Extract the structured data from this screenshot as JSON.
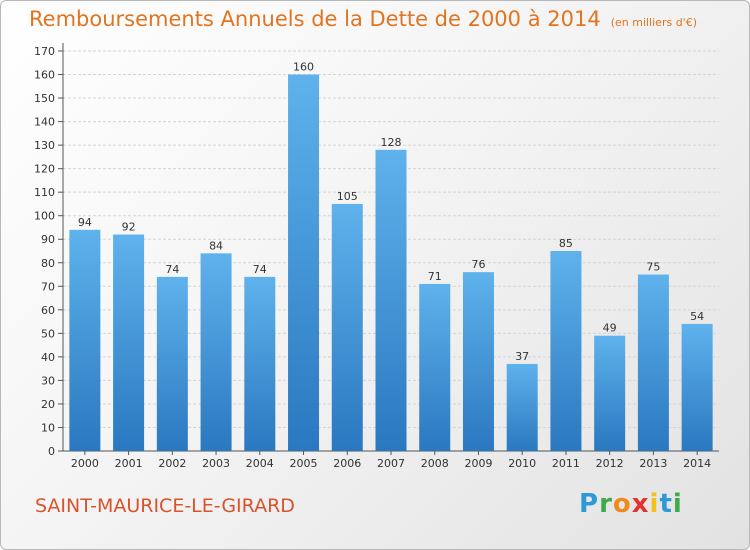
{
  "title": "Remboursements Annuels de la Dette de 2000 à 2014",
  "unit": "(en milliers d'€)",
  "place": "SAINT-MAURICE-LE-GIRARD",
  "logo": [
    "P",
    "r",
    "o",
    "x",
    "i",
    "t",
    "i"
  ],
  "colors": {
    "bar_top": "#5fb2ec",
    "bar_bottom": "#2a78c0",
    "title": "#e2741f",
    "place": "#d9532c"
  },
  "chart_data": {
    "type": "bar",
    "categories": [
      "2000",
      "2001",
      "2002",
      "2003",
      "2004",
      "2005",
      "2006",
      "2007",
      "2008",
      "2009",
      "2010",
      "2011",
      "2012",
      "2013",
      "2014"
    ],
    "values": [
      94,
      92,
      74,
      84,
      74,
      160,
      105,
      128,
      71,
      76,
      37,
      85,
      49,
      75,
      54
    ],
    "ylim": [
      0,
      170
    ],
    "yticks": [
      0,
      10,
      20,
      30,
      40,
      50,
      60,
      70,
      80,
      90,
      100,
      110,
      120,
      130,
      140,
      150,
      160,
      170
    ],
    "grid": true,
    "xlabel": "",
    "ylabel": ""
  }
}
